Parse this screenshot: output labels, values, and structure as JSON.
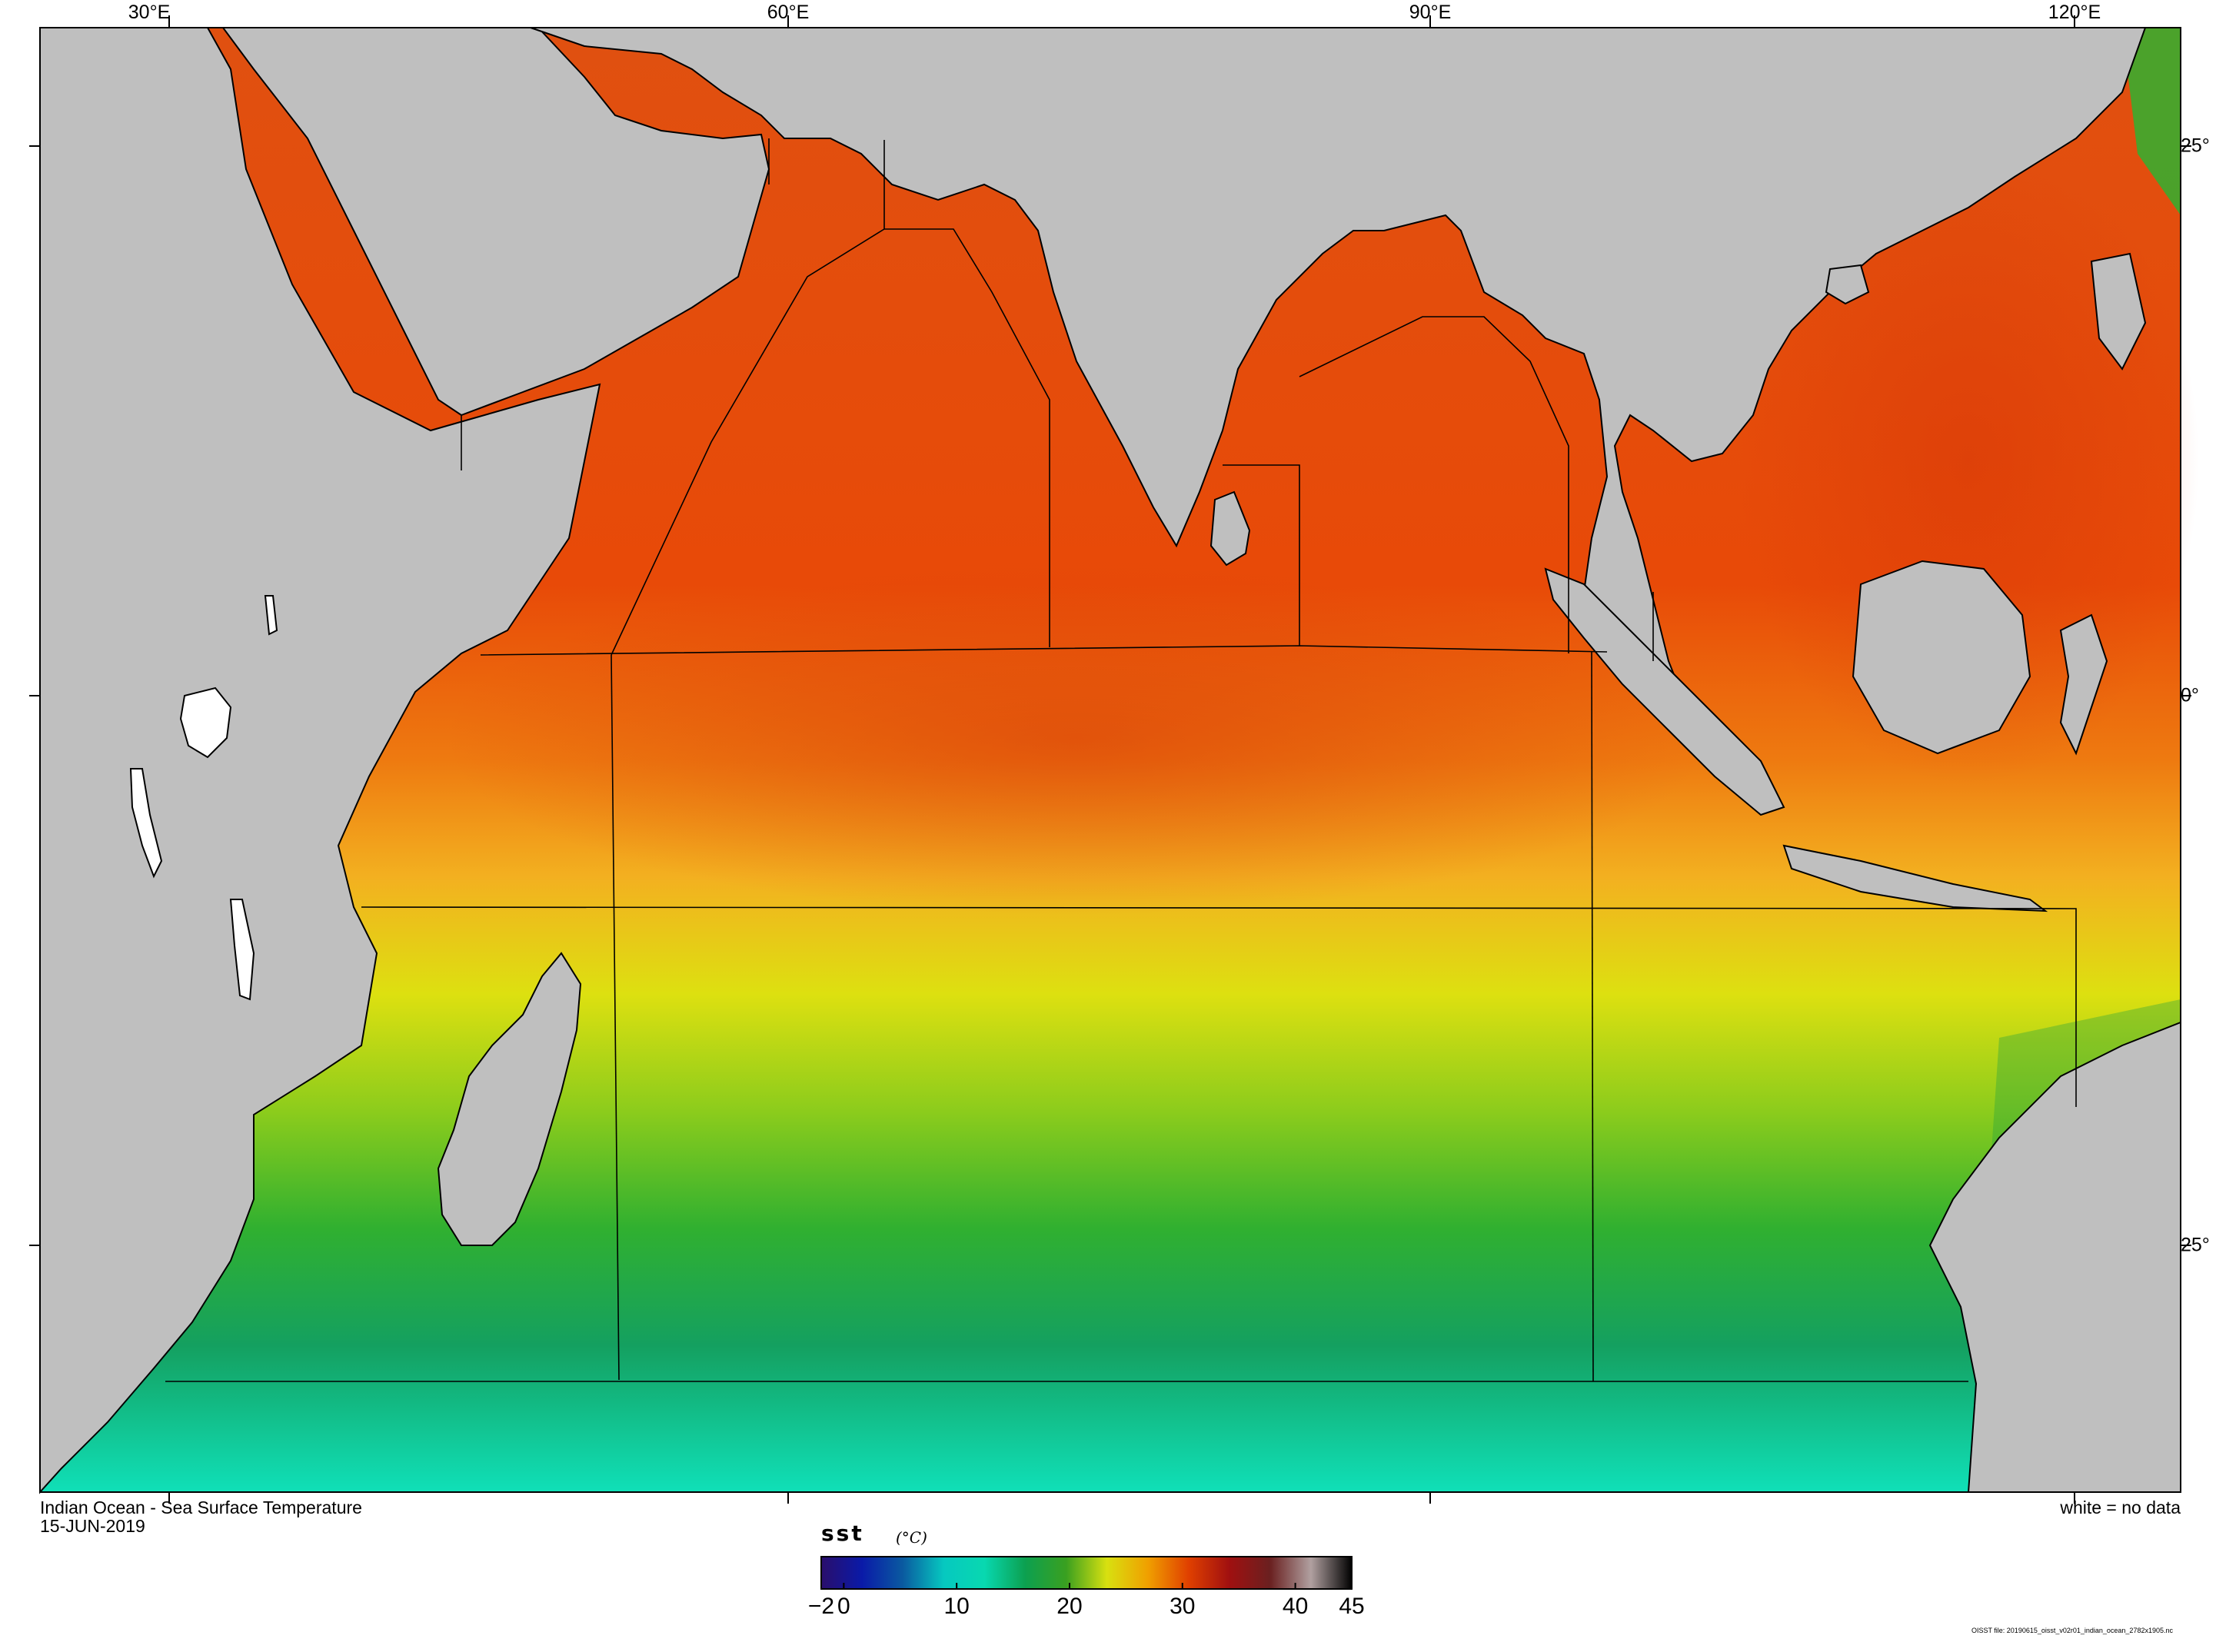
{
  "map": {
    "region": "Indian Ocean",
    "variable": "Sea Surface Temperature",
    "title": "Indian Ocean - Sea Surface Temperature",
    "date": "15-JUN-2019",
    "no_data_note": "white = no data",
    "file_note": "OISST file: 20190615_oisst_v02r01_indian_ocean_2782x1905.nc",
    "land_color": "#bfbfbf",
    "no_data_color": "#ffffff",
    "lon_labels": [
      "30°E",
      "60°E",
      "90°E",
      "120°E"
    ],
    "lat_labels": [
      "25°",
      "0°",
      "25°"
    ]
  },
  "colorbar": {
    "var_name": "sst",
    "units": "(°C)",
    "tick_labels": [
      "−2",
      "0",
      "10",
      "20",
      "30",
      "40",
      "45"
    ],
    "ticks": [
      -2,
      0,
      10,
      20,
      30,
      40,
      45
    ],
    "range": [
      -2,
      45
    ],
    "colors": [
      "#2a0e6b",
      "#0a1aa8",
      "#0a5aa0",
      "#06c8c0",
      "#08d8b0",
      "#0ca050",
      "#3aa020",
      "#d8e010",
      "#f0a000",
      "#e04000",
      "#a01010",
      "#6a2020",
      "#b0a0a0",
      "#000000"
    ]
  }
}
